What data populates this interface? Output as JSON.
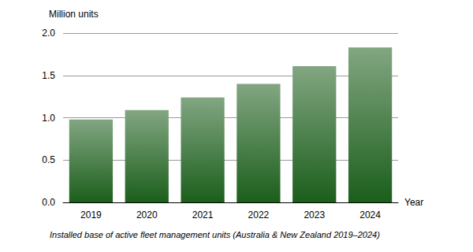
{
  "chart_data": {
    "type": "bar",
    "title": "Installed base of active fleet management units (Australia & New Zealand 2019–2024)",
    "y_label": "Million units",
    "x_label": "Year",
    "categories": [
      "2019",
      "2020",
      "2021",
      "2022",
      "2023",
      "2024"
    ],
    "values": [
      0.98,
      1.09,
      1.24,
      1.4,
      1.61,
      1.83
    ],
    "color": "#1b5e1b",
    "ylim": [
      0,
      2
    ],
    "yticks": [
      {
        "value": 0,
        "label": "0.0"
      },
      0.5,
      {
        "value": 1,
        "label": "1.0"
      },
      1.5,
      {
        "value": 2,
        "label": "2.0"
      }
    ],
    "grid": true
  }
}
